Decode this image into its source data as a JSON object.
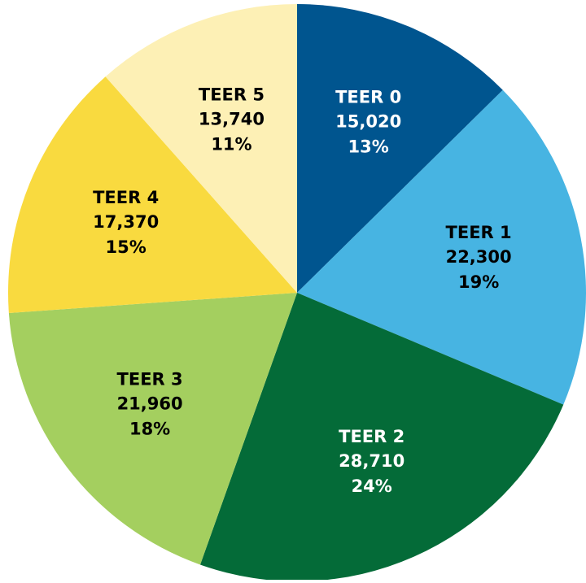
{
  "chart_data": {
    "type": "pie",
    "categories": [
      "TEER 0",
      "TEER 1",
      "TEER 2",
      "TEER 3",
      "TEER 4",
      "TEER 5"
    ],
    "values": [
      15020,
      22300,
      28710,
      21960,
      17370,
      13740
    ],
    "value_labels": [
      "15,020",
      "22,300",
      "28,710",
      "21,960",
      "17,370",
      "13,740"
    ],
    "percent_labels": [
      "13%",
      "19%",
      "24%",
      "18%",
      "15%",
      "11%"
    ],
    "colors": [
      "#00558f",
      "#47b4e2",
      "#046b38",
      "#a4cf5f",
      "#f9da3f",
      "#fdf0b5"
    ],
    "text_colors": [
      "#ffffff",
      "#000000",
      "#ffffff",
      "#000000",
      "#000000",
      "#000000"
    ]
  }
}
